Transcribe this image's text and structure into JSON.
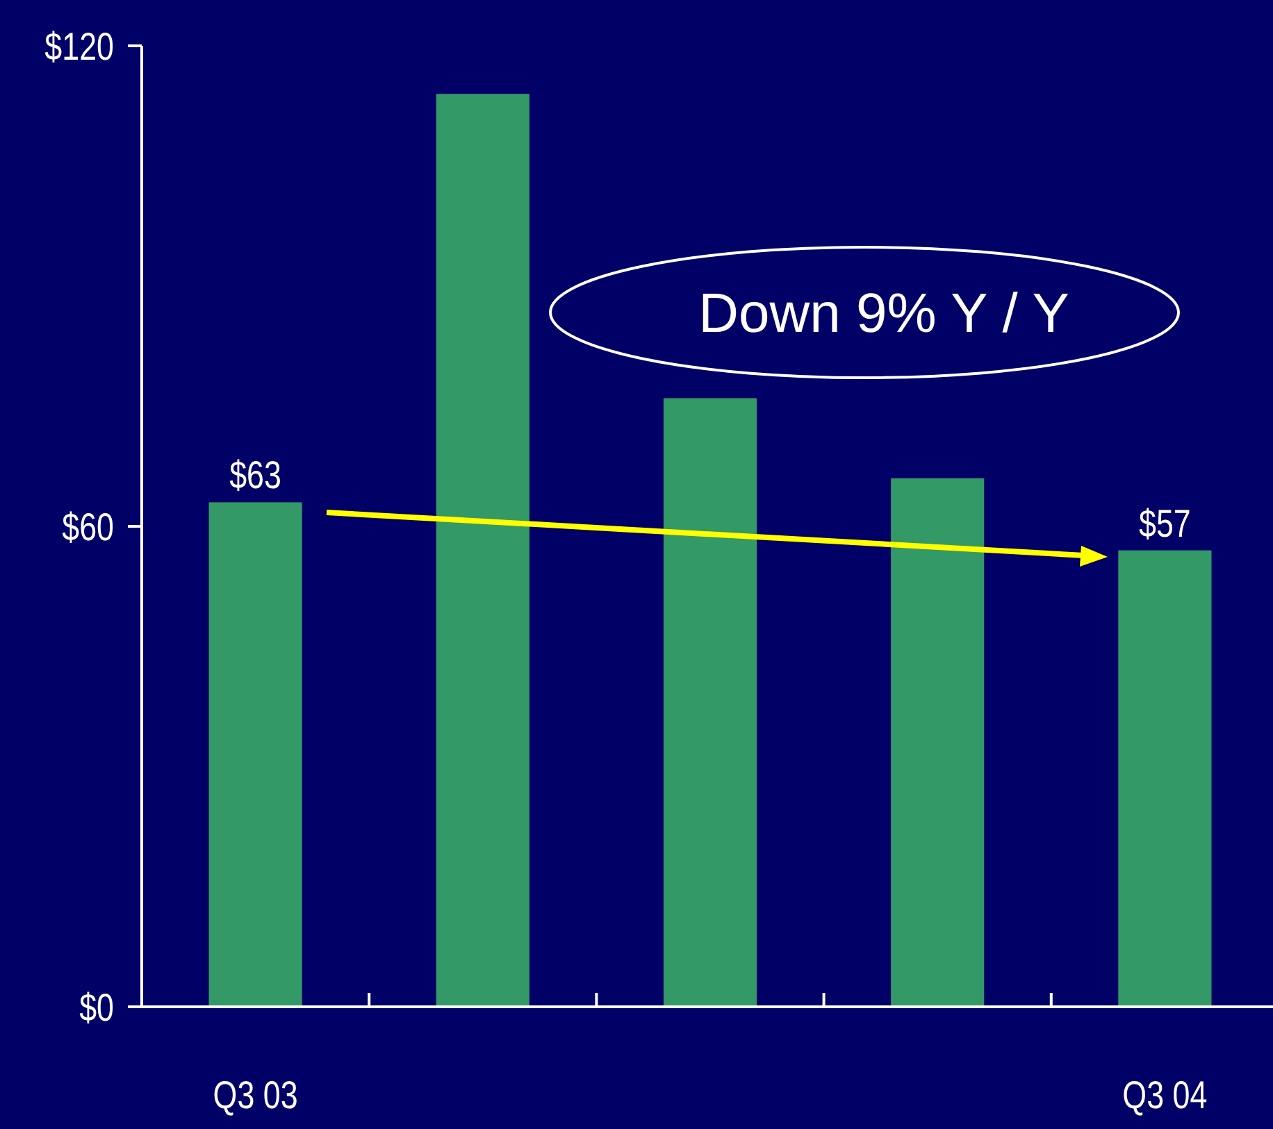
{
  "chart_data": {
    "type": "bar",
    "categories": [
      "Q3 03",
      null,
      null,
      null,
      "Q3 04"
    ],
    "values": [
      63,
      114,
      76,
      66,
      57
    ],
    "color": "#339966",
    "value_labels": [
      "$63",
      null,
      null,
      null,
      "$57"
    ],
    "ylim": [
      0,
      120
    ],
    "yticks": [
      {
        "value": 0,
        "label": "$0"
      },
      {
        "value": 60,
        "label": "$60"
      },
      {
        "value": 120,
        "label": "$120"
      }
    ],
    "annotations": [
      "Down 9% Y / Y"
    ]
  }
}
